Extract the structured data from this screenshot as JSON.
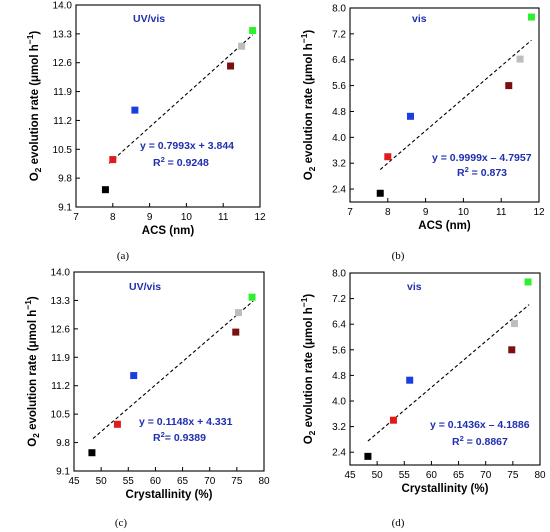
{
  "colors": {
    "text_blue": "#1f2fb0",
    "fit_line": "#000000",
    "axis": "#000000"
  },
  "chart_data": [
    {
      "type": "scatter",
      "panel_label": "(a)",
      "condition": "UV/vis",
      "xlabel": "ACS (nm)",
      "ylabel": "O2 evolution rate (μmol h−1)",
      "xlim": [
        7,
        12
      ],
      "ylim": [
        9.1,
        14.0
      ],
      "xticks": [
        "7",
        "8",
        "9",
        "10",
        "11",
        "12"
      ],
      "yticks": [
        "9.1",
        "9.8",
        "10.5",
        "11.2",
        "11.9",
        "12.6",
        "13.3",
        "14.0"
      ],
      "points": [
        {
          "x": 7.8,
          "y": 9.52,
          "color": "#000000"
        },
        {
          "x": 8.0,
          "y": 10.25,
          "color": "#e01b1b"
        },
        {
          "x": 8.6,
          "y": 11.45,
          "color": "#1a3fe0"
        },
        {
          "x": 11.2,
          "y": 12.52,
          "color": "#7a1010"
        },
        {
          "x": 11.5,
          "y": 13.0,
          "color": "#bdbdbd"
        },
        {
          "x": 11.8,
          "y": 13.38,
          "color": "#2df02d"
        }
      ],
      "fit": {
        "slope": 0.7993,
        "intercept": 3.844,
        "x_range": [
          7.9,
          11.8
        ]
      },
      "equation": "y = 0.7993x + 3.844",
      "r2_prefix": "R",
      "r2_value": " = 0.9248"
    },
    {
      "type": "scatter",
      "panel_label": "(b)",
      "condition": "vis",
      "xlabel": "ACS (nm)",
      "ylabel": "O2 evolution rate (μmol h−1)",
      "xlim": [
        7,
        12
      ],
      "ylim": [
        2.0,
        8.0
      ],
      "xticks": [
        "7",
        "8",
        "9",
        "10",
        "11",
        "12"
      ],
      "yticks": [
        "2.4",
        "3.2",
        "4.0",
        "4.8",
        "5.6",
        "6.4",
        "7.2",
        "8.0"
      ],
      "points": [
        {
          "x": 7.8,
          "y": 2.27,
          "color": "#000000"
        },
        {
          "x": 8.0,
          "y": 3.4,
          "color": "#e01b1b"
        },
        {
          "x": 8.6,
          "y": 4.65,
          "color": "#1a3fe0"
        },
        {
          "x": 11.2,
          "y": 5.6,
          "color": "#7a1010"
        },
        {
          "x": 11.5,
          "y": 6.42,
          "color": "#bdbdbd"
        },
        {
          "x": 11.8,
          "y": 7.72,
          "color": "#2df02d"
        }
      ],
      "fit": {
        "slope": 0.9999,
        "intercept": -4.7957,
        "x_range": [
          7.8,
          11.8
        ]
      },
      "equation": "y = 0.9999x –  4.7957",
      "r2_prefix": "R",
      "r2_value": " = 0.873"
    },
    {
      "type": "scatter",
      "panel_label": "(c)",
      "condition": "UV/vis",
      "xlabel": "Crystallinity (%)",
      "ylabel": "O2 evolution rate (μmol h−1)",
      "xlim": [
        45,
        80
      ],
      "ylim": [
        9.1,
        14.0
      ],
      "xticks": [
        "45",
        "50",
        "55",
        "60",
        "65",
        "70",
        "75",
        "80"
      ],
      "yticks": [
        "9.1",
        "9.8",
        "10.5",
        "11.2",
        "11.9",
        "12.6",
        "13.3",
        "14.0"
      ],
      "points": [
        {
          "x": 48.3,
          "y": 9.55,
          "color": "#000000"
        },
        {
          "x": 53.0,
          "y": 10.25,
          "color": "#e01b1b"
        },
        {
          "x": 56.0,
          "y": 11.45,
          "color": "#1a3fe0"
        },
        {
          "x": 74.8,
          "y": 12.52,
          "color": "#7a1010"
        },
        {
          "x": 75.3,
          "y": 13.0,
          "color": "#bdbdbd"
        },
        {
          "x": 77.8,
          "y": 13.38,
          "color": "#2df02d"
        }
      ],
      "fit": {
        "slope": 0.1148,
        "intercept": 4.331,
        "x_range": [
          48.5,
          78.0
        ]
      },
      "equation": "y = 0.1148x + 4.331",
      "r2_prefix": "R",
      "r2_value": "= 0.9389"
    },
    {
      "type": "scatter",
      "panel_label": "(d)",
      "condition": "vis",
      "xlabel": "Crystallinity (%)",
      "ylabel": "O2 evolution rate (μmol h−1)",
      "xlim": [
        45,
        80
      ],
      "ylim": [
        2.0,
        8.0
      ],
      "xticks": [
        "45",
        "50",
        "55",
        "60",
        "65",
        "70",
        "75",
        "80"
      ],
      "yticks": [
        "2.4",
        "3.2",
        "4.0",
        "4.8",
        "5.6",
        "6.4",
        "7.2",
        "8.0"
      ],
      "points": [
        {
          "x": 48.3,
          "y": 2.27,
          "color": "#000000"
        },
        {
          "x": 53.0,
          "y": 3.4,
          "color": "#e01b1b"
        },
        {
          "x": 56.0,
          "y": 4.65,
          "color": "#1a3fe0"
        },
        {
          "x": 74.8,
          "y": 5.6,
          "color": "#7a1010"
        },
        {
          "x": 75.3,
          "y": 6.42,
          "color": "#bdbdbd"
        },
        {
          "x": 77.8,
          "y": 7.72,
          "color": "#2df02d"
        }
      ],
      "fit": {
        "slope": 0.1436,
        "intercept": -4.1886,
        "x_range": [
          48.3,
          78.0
        ]
      },
      "equation": "y = 0.1436x – 4.1886",
      "r2_prefix": "R",
      "r2_value": " = 0.8867"
    }
  ]
}
